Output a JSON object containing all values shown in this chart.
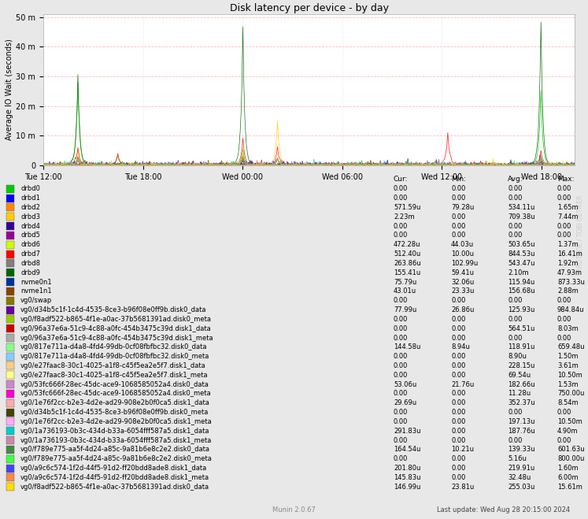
{
  "title": "Disk latency per device - by day",
  "ylabel": "Average IO Wait (seconds)",
  "background_color": "#e8e8e8",
  "plot_bg_color": "#ffffff",
  "grid_color": "#ffaaaa",
  "yticks_labels": [
    "0",
    "10 m",
    "20 m",
    "30 m",
    "40 m",
    "50 m"
  ],
  "yticks_values": [
    0,
    0.01,
    0.02,
    0.03,
    0.04,
    0.05
  ],
  "ylim": [
    0,
    0.051
  ],
  "xtick_labels": [
    "Tue 12:00",
    "Tue 18:00",
    "Wed 00:00",
    "Wed 06:00",
    "Wed 12:00",
    "Wed 18:00"
  ],
  "watermark": "RRDTOOL / TOBI OETIKER",
  "footer_left": "Munin 2.0.67",
  "footer_right": "Last update: Wed Aug 28 20:15:00 2024",
  "legend_headers": [
    "Cur:",
    "Min:",
    "Avg:",
    "Max:"
  ],
  "legend_entries": [
    {
      "label": "drbd0",
      "color": "#00cc00",
      "cur": "0.00",
      "min": "0.00",
      "avg": "0.00",
      "max": "0.00"
    },
    {
      "label": "drbd1",
      "color": "#0000ff",
      "cur": "0.00",
      "min": "0.00",
      "avg": "0.00",
      "max": "0.00"
    },
    {
      "label": "drbd2",
      "color": "#ff8800",
      "cur": "571.59u",
      "min": "79.28u",
      "avg": "534.11u",
      "max": "1.65m"
    },
    {
      "label": "drbd3",
      "color": "#ffcc00",
      "cur": "2.23m",
      "min": "0.00",
      "avg": "709.38u",
      "max": "7.44m"
    },
    {
      "label": "drbd4",
      "color": "#330099",
      "cur": "0.00",
      "min": "0.00",
      "avg": "0.00",
      "max": "0.00"
    },
    {
      "label": "drbd5",
      "color": "#990099",
      "cur": "0.00",
      "min": "0.00",
      "avg": "0.00",
      "max": "0.00"
    },
    {
      "label": "drbd6",
      "color": "#ccff00",
      "cur": "472.28u",
      "min": "44.03u",
      "avg": "503.65u",
      "max": "1.37m"
    },
    {
      "label": "drbd7",
      "color": "#ff0000",
      "cur": "512.40u",
      "min": "10.00u",
      "avg": "844.53u",
      "max": "16.41m"
    },
    {
      "label": "drbd8",
      "color": "#808080",
      "cur": "263.86u",
      "min": "102.99u",
      "avg": "543.47u",
      "max": "1.92m"
    },
    {
      "label": "drbd9",
      "color": "#006600",
      "cur": "155.41u",
      "min": "59.41u",
      "avg": "2.10m",
      "max": "47.93m"
    },
    {
      "label": "nvme0n1",
      "color": "#003399",
      "cur": "75.79u",
      "min": "32.06u",
      "avg": "115.94u",
      "max": "873.33u"
    },
    {
      "label": "nvme1n1",
      "color": "#884400",
      "cur": "43.01u",
      "min": "23.33u",
      "avg": "156.68u",
      "max": "2.88m"
    },
    {
      "label": "vg0/swap",
      "color": "#887700",
      "cur": "0.00",
      "min": "0.00",
      "avg": "0.00",
      "max": "0.00"
    },
    {
      "label": "vg0/d34b5c1f-1c4d-4535-8ce3-b96f08e0ff9b.disk0_data",
      "color": "#660099",
      "cur": "77.99u",
      "min": "26.86u",
      "avg": "125.93u",
      "max": "984.84u"
    },
    {
      "label": "vg0/f8adf522-b865-4f1e-a0ac-37b5681391ad.disk0_meta",
      "color": "#99cc00",
      "cur": "0.00",
      "min": "0.00",
      "avg": "0.00",
      "max": "0.00"
    },
    {
      "label": "vg0/96a37e6a-51c9-4c88-a0fc-454b3475c39d.disk1_data",
      "color": "#cc0000",
      "cur": "0.00",
      "min": "0.00",
      "avg": "564.51u",
      "max": "8.03m"
    },
    {
      "label": "vg0/96a37e6a-51c9-4c88-a0fc-454b3475c39d.disk1_meta",
      "color": "#aaaaaa",
      "cur": "0.00",
      "min": "0.00",
      "avg": "0.00",
      "max": "0.00"
    },
    {
      "label": "vg0/817e711a-d4a8-4fd4-99db-0cf08fbfbc32.disk0_data",
      "color": "#88ff88",
      "cur": "144.58u",
      "min": "8.94u",
      "avg": "118.91u",
      "max": "659.48u"
    },
    {
      "label": "vg0/817e711a-d4a8-4fd4-99db-0cf08fbfbc32.disk0_meta",
      "color": "#88ccff",
      "cur": "0.00",
      "min": "0.00",
      "avg": "8.90u",
      "max": "1.50m"
    },
    {
      "label": "vg0/e27faac8-30c1-4025-a1f8-c45f5ea2e5f7.disk1_data",
      "color": "#ffcc88",
      "cur": "0.00",
      "min": "0.00",
      "avg": "228.15u",
      "max": "3.61m"
    },
    {
      "label": "vg0/e27faac8-30c1-4025-a1f8-c45f5ea2e5f7.disk1_meta",
      "color": "#ffff88",
      "cur": "0.00",
      "min": "0.00",
      "avg": "69.54u",
      "max": "10.50m"
    },
    {
      "label": "vg0/53fc666f-28ec-45dc-ace9-1068585052a4.disk0_data",
      "color": "#cc88cc",
      "cur": "53.06u",
      "min": "21.76u",
      "avg": "182.66u",
      "max": "1.53m"
    },
    {
      "label": "vg0/53fc666f-28ec-45dc-ace9-1068585052a4.disk0_meta",
      "color": "#ff00cc",
      "cur": "0.00",
      "min": "0.00",
      "avg": "11.28u",
      "max": "750.00u"
    },
    {
      "label": "vg0/1e76f2cc-b2e3-4d2e-ad29-908e2b0f0ca5.disk1_data",
      "color": "#ffaaaa",
      "cur": "29.69u",
      "min": "0.00",
      "avg": "352.37u",
      "max": "8.54m"
    },
    {
      "label": "vg0/d34b5c1f-1c4d-4535-8ce3-b96f08e0ff9b.disk0_meta",
      "color": "#444400",
      "cur": "0.00",
      "min": "0.00",
      "avg": "0.00",
      "max": "0.00"
    },
    {
      "label": "vg0/1e76f2cc-b2e3-4d2e-ad29-908e2b0f0ca5.disk1_meta",
      "color": "#ffaaff",
      "cur": "0.00",
      "min": "0.00",
      "avg": "197.13u",
      "max": "10.50m"
    },
    {
      "label": "vg0/1a736193-0b3c-434d-b33a-6054fff587a5.disk1_data",
      "color": "#00cccc",
      "cur": "291.83u",
      "min": "0.00",
      "avg": "187.76u",
      "max": "4.90m"
    },
    {
      "label": "vg0/1a736193-0b3c-434d-b33a-6054fff587a5.disk1_meta",
      "color": "#cc88aa",
      "cur": "0.00",
      "min": "0.00",
      "avg": "0.00",
      "max": "0.00"
    },
    {
      "label": "vg0/f789e775-aa5f-4d24-a85c-9a81b6e8c2e2.disk0_data",
      "color": "#448844",
      "cur": "164.54u",
      "min": "10.21u",
      "avg": "139.33u",
      "max": "601.63u"
    },
    {
      "label": "vg0/f789e775-aa5f-4d24-a85c-9a81b6e8c2e2.disk0_meta",
      "color": "#44ff44",
      "cur": "0.00",
      "min": "0.00",
      "avg": "5.16u",
      "max": "800.00u"
    },
    {
      "label": "vg0/a9c6c574-1f2d-44f5-91d2-ff20bdd8ade8.disk1_data",
      "color": "#4444ff",
      "cur": "201.80u",
      "min": "0.00",
      "avg": "219.91u",
      "max": "1.60m"
    },
    {
      "label": "vg0/a9c6c574-1f2d-44f5-91d2-ff20bdd8ade8.disk1_meta",
      "color": "#ff8844",
      "cur": "145.83u",
      "min": "0.00",
      "avg": "32.48u",
      "max": "6.00m"
    },
    {
      "label": "vg0/f8adf522-b865-4f1e-a0ac-37b5681391ad.disk0_data",
      "color": "#ffdd00",
      "cur": "146.99u",
      "min": "23.81u",
      "avg": "255.03u",
      "max": "15.61m"
    }
  ]
}
